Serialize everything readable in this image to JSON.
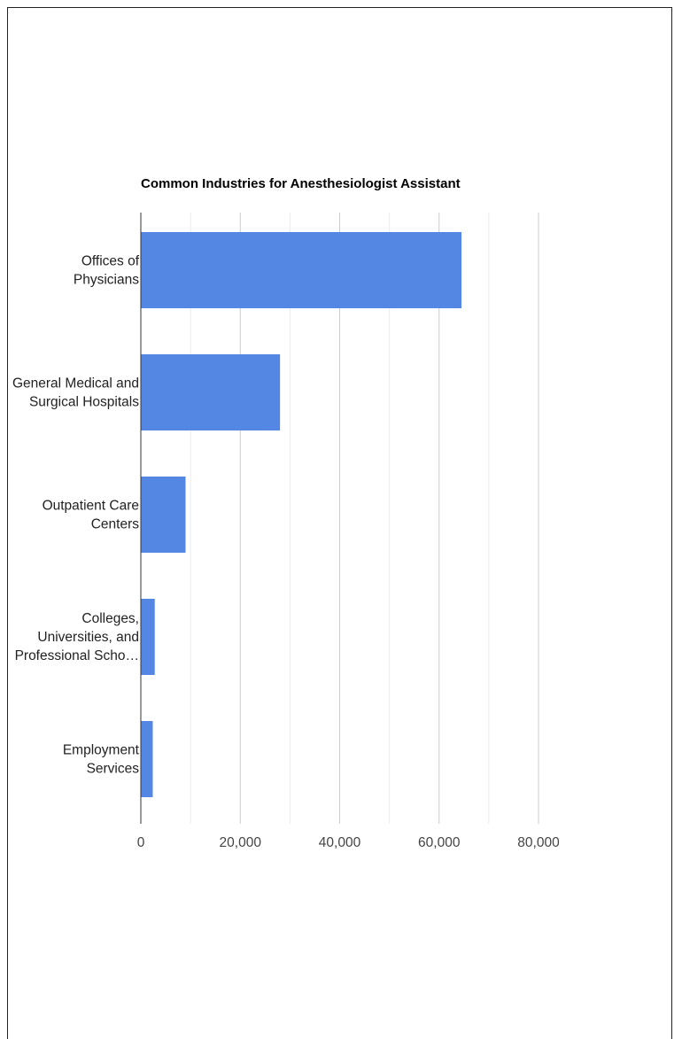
{
  "chart_data": {
    "type": "bar",
    "orientation": "horizontal",
    "title": "Common Industries for Anesthesiologist Assistant",
    "categories": [
      [
        "Offices of",
        "Physicians"
      ],
      [
        "General Medical and",
        "Surgical Hospitals"
      ],
      [
        "Outpatient Care",
        "Centers"
      ],
      [
        "Colleges,",
        "Universities, and",
        "Professional Scho…"
      ],
      [
        "Employment",
        "Services"
      ]
    ],
    "values": [
      64500,
      28000,
      9000,
      2800,
      2400
    ],
    "xlim": [
      0,
      80000
    ],
    "xticks": [
      "0",
      "20,000",
      "40,000",
      "60,000",
      "80,000"
    ],
    "grid": true,
    "bar_color": "#5487e3"
  }
}
